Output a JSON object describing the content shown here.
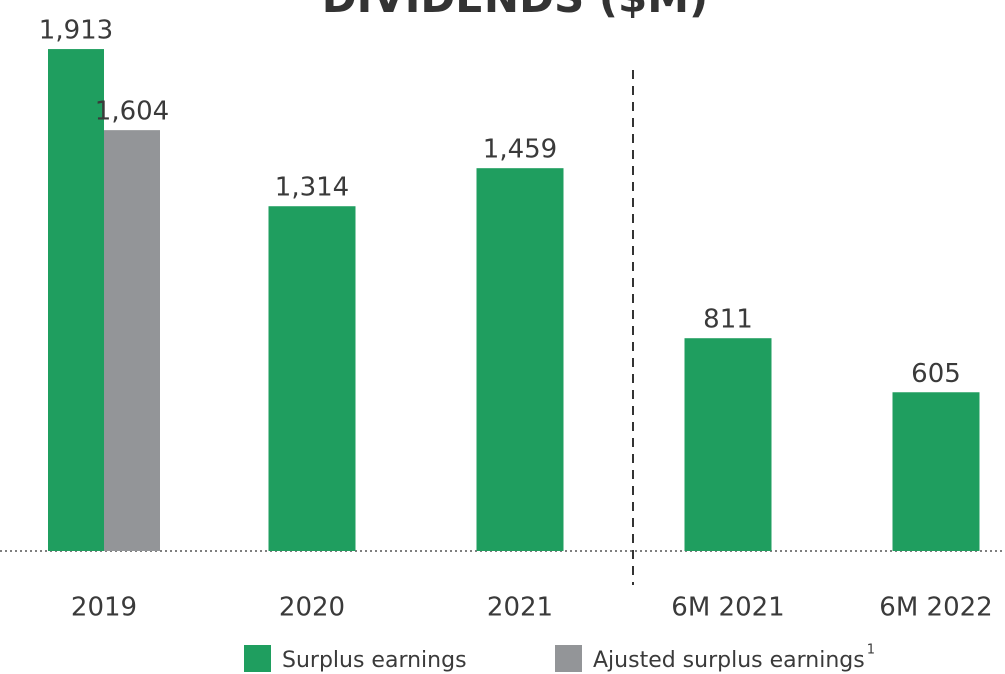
{
  "chart_data": {
    "type": "bar",
    "title": "DIVIDENDS ($M)",
    "categories": [
      "2019",
      "2020",
      "2021",
      "6M 2021",
      "6M 2022"
    ],
    "series": [
      {
        "name": "Surplus earnings",
        "color": "#1f9e5f",
        "values": [
          1913,
          1314,
          1459,
          811,
          605
        ],
        "value_labels": [
          "1,913",
          "1,314",
          "1,459",
          "811",
          "605"
        ]
      },
      {
        "name": "Ajusted surplus earnings",
        "color": "#939598",
        "values": [
          1604,
          null,
          null,
          null,
          null
        ],
        "value_labels": [
          "1,604",
          null,
          null,
          null,
          null
        ]
      }
    ],
    "legend_footnote": "1",
    "ylim": [
      0,
      2100
    ],
    "legend": "bottom"
  }
}
